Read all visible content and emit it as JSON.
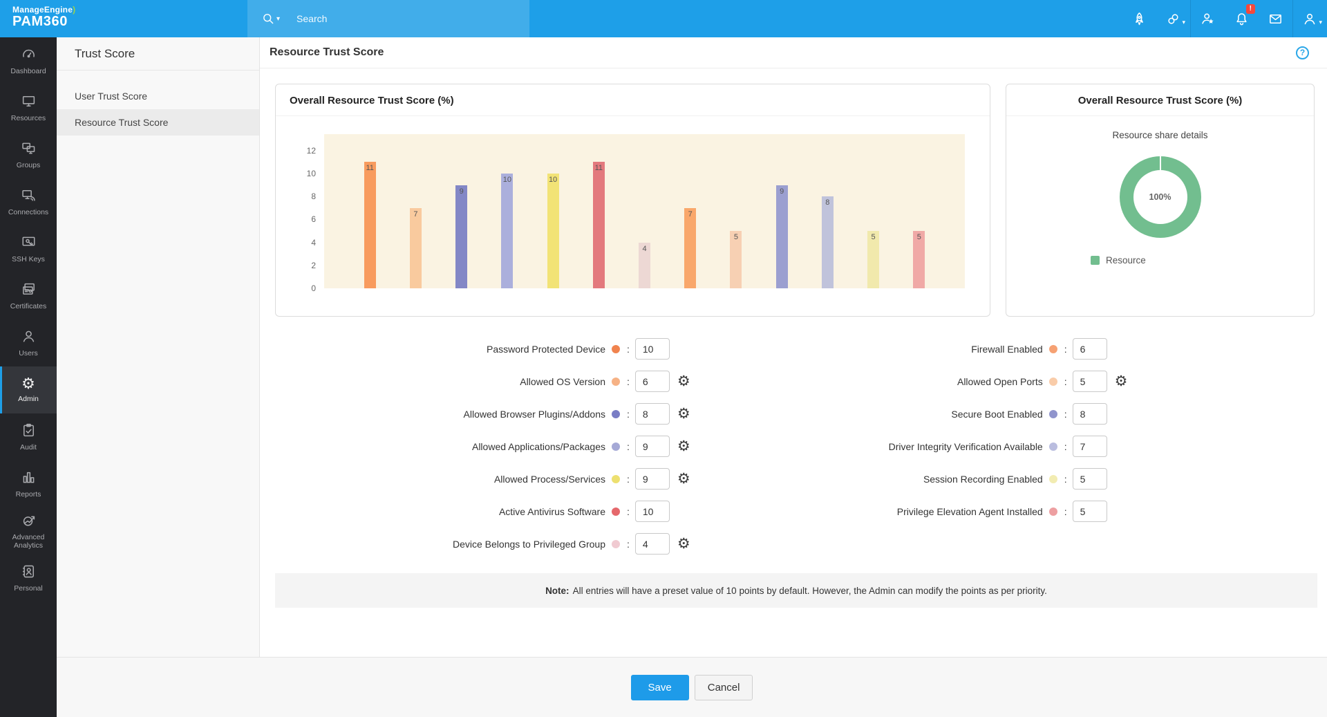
{
  "topbar": {
    "logo_line1": "ManageEngine",
    "logo_swirl": ")",
    "logo_line2": "PAM360",
    "search_placeholder": "Search",
    "bell_badge": "!"
  },
  "sidebar": {
    "items": [
      {
        "label": "Dashboard",
        "icon": "dashboard-icon",
        "active": false
      },
      {
        "label": "Resources",
        "icon": "resources-icon",
        "active": false
      },
      {
        "label": "Groups",
        "icon": "groups-icon",
        "active": false
      },
      {
        "label": "Connections",
        "icon": "connections-icon",
        "active": false
      },
      {
        "label": "SSH Keys",
        "icon": "ssh-keys-icon",
        "active": false
      },
      {
        "label": "Certificates",
        "icon": "certificates-icon",
        "active": false
      },
      {
        "label": "Users",
        "icon": "users-icon",
        "active": false
      },
      {
        "label": "Admin",
        "icon": "admin-icon",
        "active": true
      },
      {
        "label": "Audit",
        "icon": "audit-icon",
        "active": false
      },
      {
        "label": "Reports",
        "icon": "reports-icon",
        "active": false
      },
      {
        "label": "Advanced Analytics",
        "icon": "advanced-analytics-icon",
        "active": false
      },
      {
        "label": "Personal",
        "icon": "personal-icon",
        "active": false
      }
    ]
  },
  "subnav": {
    "title": "Trust Score",
    "items": [
      {
        "label": "User Trust Score",
        "selected": false
      },
      {
        "label": "Resource Trust Score",
        "selected": true
      }
    ]
  },
  "header": {
    "title": "Resource Trust Score",
    "help_label": "?"
  },
  "chart_data": [
    {
      "type": "bar",
      "title": "Overall Resource Trust Score (%)",
      "values": [
        11,
        7,
        9,
        10,
        10,
        11,
        4,
        7,
        5,
        9,
        8,
        5,
        5
      ],
      "bar_colors": [
        "#F89B5E",
        "#F9CA9E",
        "#8387C6",
        "#ABAFDC",
        "#F2E376",
        "#E3797D",
        "#EDD8D4",
        "#F9A76B",
        "#F7D0B3",
        "#9B9FD0",
        "#C0C3DB",
        "#F1E9AC",
        "#F0A9A6"
      ],
      "yticks": [
        0,
        2,
        4,
        6,
        8,
        10,
        12
      ],
      "ylim": [
        0,
        13.4
      ],
      "xlabel": "",
      "ylabel": "",
      "grid": false,
      "plot_bg": "#FAF3E2"
    },
    {
      "type": "pie",
      "title": "Overall Resource Trust Score (%)",
      "subtitle": "Resource share details",
      "labels": [
        "Resource"
      ],
      "values": [
        100
      ],
      "center_label": "100%",
      "color": "#72BE8F",
      "legend_position": "bottom-left"
    }
  ],
  "form": {
    "left": [
      {
        "label": "Password Protected Device",
        "dot_color": "#F0834E",
        "value": "10",
        "gear": false
      },
      {
        "label": "Allowed OS Version",
        "dot_color": "#F6B285",
        "value": "6",
        "gear": true
      },
      {
        "label": "Allowed Browser Plugins/Addons",
        "dot_color": "#797DC5",
        "value": "8",
        "gear": true
      },
      {
        "label": "Allowed Applications/Packages",
        "dot_color": "#A5A9D6",
        "value": "9",
        "gear": true
      },
      {
        "label": "Allowed Process/Services",
        "dot_color": "#EDE070",
        "value": "9",
        "gear": true
      },
      {
        "label": "Active Antivirus Software",
        "dot_color": "#E5686C",
        "value": "10",
        "gear": false
      },
      {
        "label": "Device Belongs to Privileged Group",
        "dot_color": "#F0CAD1",
        "value": "4",
        "gear": true
      }
    ],
    "right": [
      {
        "label": "Firewall Enabled",
        "dot_color": "#F6A173",
        "value": "6",
        "gear": false
      },
      {
        "label": "Allowed Open Ports",
        "dot_color": "#F9CCA9",
        "value": "5",
        "gear": true
      },
      {
        "label": "Secure Boot Enabled",
        "dot_color": "#9094CC",
        "value": "8",
        "gear": false
      },
      {
        "label": "Driver Integrity Verification Available",
        "dot_color": "#BABDDF",
        "value": "7",
        "gear": false
      },
      {
        "label": "Session Recording Enabled",
        "dot_color": "#F2ECB2",
        "value": "5",
        "gear": false
      },
      {
        "label": "Privilege Elevation Agent Installed",
        "dot_color": "#ED9FA1",
        "value": "5",
        "gear": false
      }
    ]
  },
  "note": {
    "bold": "Note:",
    "text": "All entries will have a preset value of 10 points by default. However, the Admin can modify the points as per priority."
  },
  "footer": {
    "save_label": "Save",
    "cancel_label": "Cancel"
  }
}
